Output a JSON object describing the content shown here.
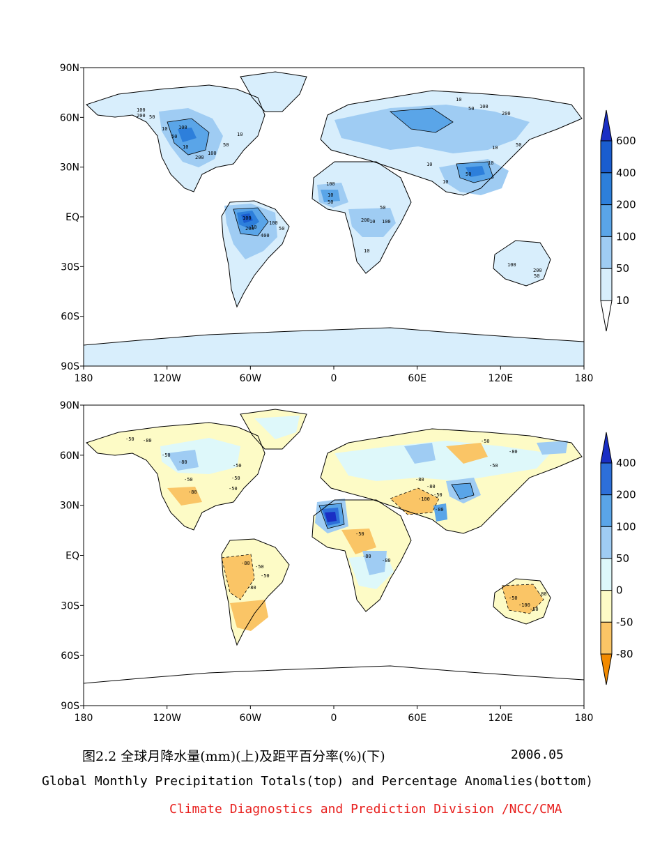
{
  "colors": {
    "precip": [
      "#ffffff",
      "#d8eefc",
      "#9fccf3",
      "#5aa5e8",
      "#2d7fdb",
      "#1a5dcf",
      "#1a2fc4"
    ],
    "anomaly": [
      "#f28a00",
      "#fac566",
      "#fdfbc6",
      "#def8fa",
      "#9fccf3",
      "#5aa5e8",
      "#2d6fd9",
      "#1a2fc4"
    ],
    "credit": "#e8201e"
  },
  "panels": [
    {
      "id": "top",
      "y_ticks": [
        "90N",
        "60N",
        "30N",
        "EQ",
        "30S",
        "60S",
        "90S"
      ],
      "x_ticks": [
        "180",
        "120W",
        "60W",
        "0",
        "60E",
        "120E",
        "180"
      ],
      "colorbar_labels": [
        "600",
        "400",
        "200",
        "100",
        "50",
        "10"
      ]
    },
    {
      "id": "bottom",
      "y_ticks": [
        "90N",
        "60N",
        "30N",
        "EQ",
        "30S",
        "60S",
        "90S"
      ],
      "x_ticks": [
        "180",
        "120W",
        "60W",
        "0",
        "60E",
        "120E",
        "180"
      ],
      "colorbar_labels": [
        "400",
        "200",
        "100",
        "50",
        "0",
        "-50",
        "-80"
      ]
    }
  ],
  "contour_labels": {
    "top": [
      "100",
      "200",
      "50",
      "10",
      "100",
      "50",
      "10",
      "200",
      "100",
      "50",
      "10",
      "100",
      "200",
      "10",
      "400",
      "100",
      "50",
      "10",
      "50",
      "100",
      "200",
      "10",
      "100",
      "50",
      "10",
      "10",
      "50",
      "100",
      "200",
      "50",
      "10",
      "50",
      "10",
      "100",
      "200",
      "10",
      "10",
      "50"
    ],
    "bottom": [
      "-50",
      "-80",
      "-50",
      "-50",
      "-80",
      "-50",
      "-80",
      "-50",
      "-80",
      "-50",
      "-80",
      "-80",
      "-50",
      "-80",
      "-100",
      "-50",
      "-80",
      "-80",
      "-50",
      "-100",
      "-80",
      "-50",
      "-80",
      "-50",
      "-50",
      "-50",
      "-80",
      "-50"
    ]
  },
  "caption": {
    "cn": "图2.2  全球月降水量(mm)(上)及距平百分率(%)(下)",
    "date": "2006.05",
    "en": "Global Monthly Precipitation Totals(top) and Percentage Anomalies(bottom)",
    "credit": "Climate Diagnostics and Prediction Division /NCC/CMA"
  }
}
